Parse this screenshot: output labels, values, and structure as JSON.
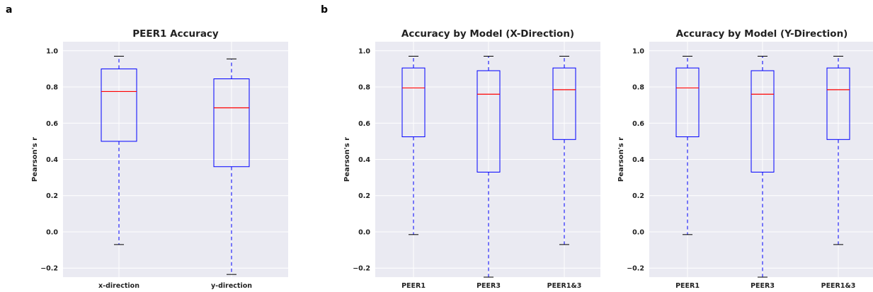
{
  "panel_letters": [
    "a",
    "b"
  ],
  "colors": {
    "axes_bg": "#eaeaf2",
    "grid": "#ffffff",
    "box": "#0000ff",
    "median": "#ff0000",
    "whisker": "#0000ff",
    "cap": "#000000"
  },
  "chart_data": [
    {
      "type": "boxplot",
      "title": "PEER1 Accuracy",
      "xlabel": "",
      "ylabel": "Pearson's r",
      "ylim": [
        -0.25,
        1.05
      ],
      "yticks": [
        -0.2,
        0.0,
        0.2,
        0.4,
        0.6,
        0.8,
        1.0
      ],
      "ytick_labels": [
        "−0.2",
        "0.0",
        "0.2",
        "0.4",
        "0.6",
        "0.8",
        "1.0"
      ],
      "grid": true,
      "categories": [
        "x-direction",
        "y-direction"
      ],
      "boxes": [
        {
          "whisker_low": -0.07,
          "q1": 0.5,
          "median": 0.775,
          "q3": 0.9,
          "whisker_high": 0.97
        },
        {
          "whisker_low": -0.235,
          "q1": 0.36,
          "median": 0.685,
          "q3": 0.845,
          "whisker_high": 0.955
        }
      ]
    },
    {
      "type": "boxplot",
      "title": "Accuracy by Model (X-Direction)",
      "xlabel": "",
      "ylabel": "Pearson's r",
      "ylim": [
        -0.25,
        1.05
      ],
      "yticks": [
        -0.2,
        0.0,
        0.2,
        0.4,
        0.6,
        0.8,
        1.0
      ],
      "ytick_labels": [
        "−0.2",
        "0.0",
        "0.2",
        "0.4",
        "0.6",
        "0.8",
        "1.0"
      ],
      "grid": true,
      "categories": [
        "PEER1",
        "PEER3",
        "PEER1&3"
      ],
      "boxes": [
        {
          "whisker_low": -0.015,
          "q1": 0.525,
          "median": 0.795,
          "q3": 0.905,
          "whisker_high": 0.97
        },
        {
          "whisker_low": -0.25,
          "q1": 0.33,
          "median": 0.76,
          "q3": 0.89,
          "whisker_high": 0.97
        },
        {
          "whisker_low": -0.07,
          "q1": 0.51,
          "median": 0.785,
          "q3": 0.905,
          "whisker_high": 0.97
        }
      ]
    },
    {
      "type": "boxplot",
      "title": "Accuracy by Model (Y-Direction)",
      "xlabel": "",
      "ylabel": "Pearson's r",
      "ylim": [
        -0.25,
        1.05
      ],
      "yticks": [
        -0.2,
        0.0,
        0.2,
        0.4,
        0.6,
        0.8,
        1.0
      ],
      "ytick_labels": [
        "−0.2",
        "0.0",
        "0.2",
        "0.4",
        "0.6",
        "0.8",
        "1.0"
      ],
      "grid": true,
      "categories": [
        "PEER1",
        "PEER3",
        "PEER1&3"
      ],
      "boxes": [
        {
          "whisker_low": -0.015,
          "q1": 0.525,
          "median": 0.795,
          "q3": 0.905,
          "whisker_high": 0.97
        },
        {
          "whisker_low": -0.25,
          "q1": 0.33,
          "median": 0.76,
          "q3": 0.89,
          "whisker_high": 0.97
        },
        {
          "whisker_low": -0.07,
          "q1": 0.51,
          "median": 0.785,
          "q3": 0.905,
          "whisker_high": 0.97
        }
      ]
    }
  ]
}
